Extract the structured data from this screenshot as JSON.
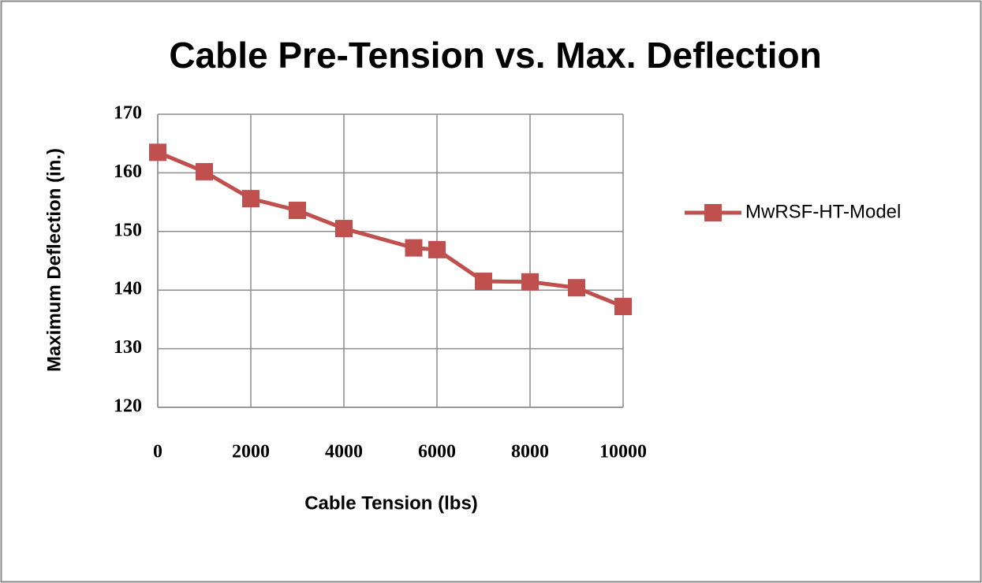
{
  "chart_data": {
    "type": "line",
    "title": "Cable Pre-Tension vs. Max. Deflection",
    "xlabel": "Cable Tension (lbs)",
    "ylabel": "Maximum Deflection (in.)",
    "x": [
      0,
      1000,
      2000,
      3000,
      4000,
      5500,
      6000,
      7000,
      8000,
      9000,
      10000
    ],
    "series": [
      {
        "name": "MwRSF-HT-Model",
        "color": "#c0504d",
        "values": [
          163.5,
          160.2,
          155.6,
          153.6,
          150.5,
          147.2,
          146.9,
          141.5,
          141.4,
          140.4,
          137.2
        ]
      }
    ],
    "xlim": [
      0,
      10000
    ],
    "xticks": [
      0,
      2000,
      4000,
      6000,
      8000,
      10000
    ],
    "ylim": [
      120,
      170
    ],
    "yticks": [
      120,
      130,
      140,
      150,
      160,
      170
    ],
    "grid": true,
    "legend": "right"
  }
}
